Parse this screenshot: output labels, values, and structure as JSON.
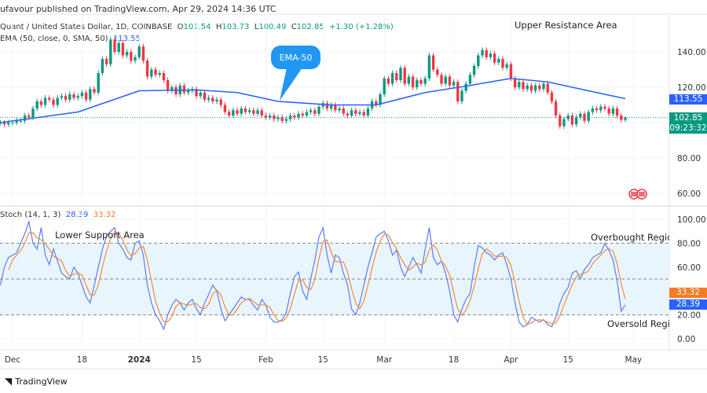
{
  "header": {
    "published": "ufavour published on TradingView.com, Apr 29, 2024 14:36 UTC"
  },
  "legend": {
    "symbol": "Quant / United States Dollar, 1D, COINBASE",
    "o_label": "O",
    "o": "101.54",
    "h_label": "H",
    "h": "103.73",
    "l_label": "L",
    "l": "100.49",
    "c_label": "C",
    "c": "102.85",
    "change": "+1.30 (+1.28%)",
    "ema_label": "EMA (50, close, 0, SMA, 50)",
    "ema_value": "113.55",
    "stoch_label": "Stoch (14, 1, 3)",
    "stoch_k": "28.39",
    "stoch_d": "33.32"
  },
  "annotations": {
    "ema_callout": "EMA-50",
    "upper": "Upper Resistance Area",
    "lower": "Lower Support Area",
    "overbought": "Overbought Region",
    "oversold": "Oversold Regio"
  },
  "price_axis": {
    "ticks": [
      "140.00",
      "120.00",
      "80.00",
      "60.00"
    ],
    "ema_tag": "113.55",
    "last_price": "102.85",
    "countdown": "09:23:32"
  },
  "stoch_axis": {
    "ticks": [
      "100.00",
      "80.00",
      "60.00",
      "20.00",
      "0.00"
    ],
    "d_tag": "33.32",
    "k_tag": "28.39"
  },
  "time_axis": {
    "ticks": [
      "Dec",
      "18",
      "2024",
      "15",
      "Feb",
      "15",
      "Mar",
      "18",
      "Apr",
      "15",
      "May"
    ]
  },
  "footer": {
    "brand": "TradingView"
  },
  "colors": {
    "up": "#089981",
    "down": "#f23645",
    "ema": "#2962ff",
    "k": "#5b7cf5",
    "d": "#f5883c",
    "band": "#e3f2fd"
  },
  "chart_data": [
    {
      "type": "candlestick",
      "title": "Quant / United States Dollar, 1D, COINBASE",
      "ylim": [
        50,
        160
      ],
      "last_candle": {
        "open": 101.54,
        "high": 103.73,
        "low": 100.49,
        "close": 102.85
      },
      "closes_by_month": {
        "2023-11-28": [
          100,
          99,
          100
        ],
        "2023-12": [
          100,
          101,
          101,
          104,
          103,
          108,
          112,
          110,
          114,
          113,
          110,
          114,
          115,
          113,
          116,
          114,
          115,
          117,
          113,
          119,
          117,
          128,
          136,
          133,
          147,
          140,
          145,
          138,
          140,
          135,
          137
        ],
        "2024-01": [
          143,
          135,
          126,
          130,
          127,
          128,
          124,
          118,
          120,
          116,
          121,
          117,
          118,
          119,
          115,
          117,
          113,
          114,
          112,
          113,
          110,
          106,
          104,
          107,
          105,
          108,
          106,
          107,
          105,
          107,
          104
        ],
        "2024-02": [
          103,
          104,
          102,
          103,
          101,
          102,
          104,
          103,
          105,
          104,
          106,
          107,
          105,
          109,
          111,
          108,
          110,
          107,
          108,
          105,
          104,
          107,
          105,
          106,
          104,
          108,
          112,
          110,
          116
        ],
        "2024-03": [
          125,
          122,
          128,
          124,
          131,
          122,
          126,
          120,
          124,
          122,
          125,
          138,
          130,
          127,
          122,
          126,
          121,
          123,
          112,
          118,
          122,
          127,
          132,
          138,
          141,
          137,
          139,
          134,
          136,
          131,
          133
        ],
        "2024-04": [
          125,
          120,
          123,
          119,
          121,
          118,
          121,
          119,
          122,
          117,
          112,
          104,
          98,
          102,
          104,
          99,
          103,
          105,
          101,
          106,
          108,
          107,
          109,
          108,
          105,
          108,
          104,
          101.54,
          102.85
        ]
      },
      "ema50": [
        [
          "2023-11-28",
          100
        ],
        [
          "2023-12-17",
          106
        ],
        [
          "2024-01-01",
          118
        ],
        [
          "2024-01-15",
          118.5
        ],
        [
          "2024-01-25",
          117
        ],
        [
          "2024-02-04",
          112
        ],
        [
          "2024-02-17",
          110
        ],
        [
          "2024-02-28",
          110
        ],
        [
          "2024-03-11",
          117
        ],
        [
          "2024-03-22",
          121
        ],
        [
          "2024-04-01",
          125
        ],
        [
          "2024-04-10",
          123
        ],
        [
          "2024-04-22",
          117
        ],
        [
          "2024-04-29",
          113.55
        ]
      ]
    },
    {
      "type": "line",
      "title": "Stoch (14, 1, 3)",
      "ylim": [
        0,
        100
      ],
      "bands": {
        "overbought": 80,
        "middle": 50,
        "oversold": 20
      },
      "k_by_month": {
        "2023-11-28": [
          45,
          60,
          68
        ],
        "2023-12": [
          70,
          72,
          80,
          88,
          98,
          80,
          75,
          93,
          70,
          62,
          75,
          65,
          55,
          52,
          50,
          60,
          55,
          45,
          35,
          30,
          45,
          60,
          75,
          86,
          90,
          93,
          80,
          75,
          68,
          66,
          80
        ],
        "2024-01": [
          82,
          70,
          45,
          30,
          20,
          15,
          8,
          20,
          28,
          33,
          30,
          24,
          30,
          33,
          25,
          20,
          30,
          37,
          45,
          40,
          25,
          15,
          20,
          25,
          30,
          35,
          33,
          33,
          28,
          24,
          33
        ],
        "2024-02": [
          28,
          18,
          14,
          14,
          16,
          22,
          38,
          52,
          56,
          40,
          33,
          50,
          66,
          85,
          93,
          70,
          55,
          70,
          68,
          55,
          45,
          25,
          20,
          30,
          45,
          60,
          72,
          85,
          88
        ],
        "2024-03": [
          90,
          82,
          70,
          74,
          60,
          52,
          60,
          68,
          62,
          55,
          75,
          93,
          68,
          62,
          65,
          55,
          40,
          20,
          14,
          25,
          33,
          38,
          60,
          78,
          76,
          72,
          70,
          66,
          70,
          72,
          62
        ],
        "2024-04": [
          50,
          30,
          14,
          10,
          12,
          18,
          16,
          14,
          16,
          12,
          10,
          18,
          30,
          38,
          43,
          55,
          57,
          50,
          58,
          62,
          68,
          70,
          72,
          80,
          74,
          66,
          48.6,
          23,
          28.39
        ]
      }
    }
  ]
}
